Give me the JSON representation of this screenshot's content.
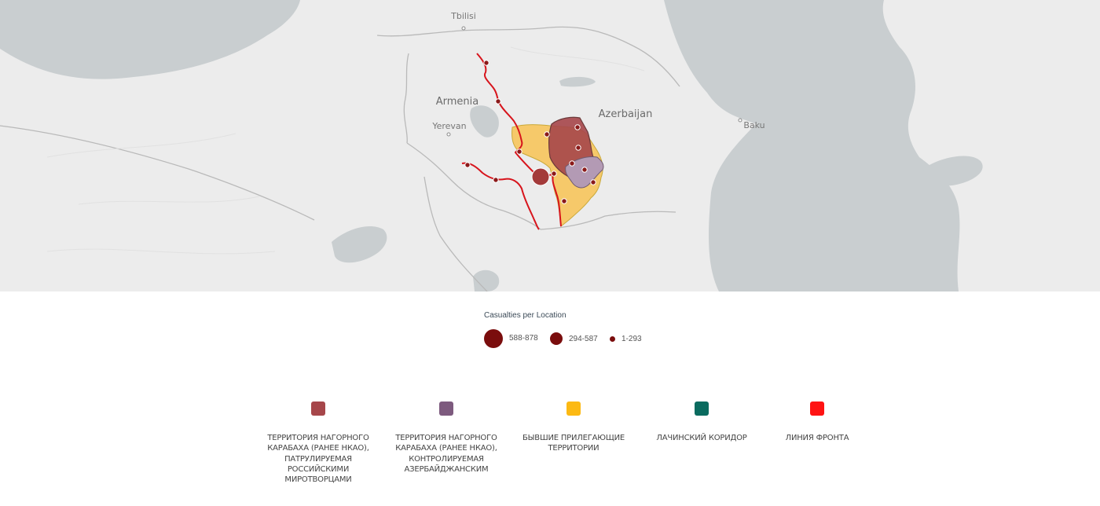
{
  "map": {
    "places": [
      {
        "name": "Tbilisi",
        "kind": "city"
      },
      {
        "name": "Armenia",
        "kind": "country"
      },
      {
        "name": "Yerevan",
        "kind": "city"
      },
      {
        "name": "Azerbaijan",
        "kind": "country"
      },
      {
        "name": "Baku",
        "kind": "city"
      }
    ],
    "colors": {
      "sea": "#c9ced0",
      "land": "#ececec",
      "border": "#b9b9b9",
      "front_line": "#d7141c",
      "casualty_marker": "#8b1a1a"
    }
  },
  "size_legend": {
    "title": "Casualties per Location",
    "items": [
      {
        "label": "588-878",
        "size": "large"
      },
      {
        "label": "294-587",
        "size": "medium"
      },
      {
        "label": "1-293",
        "size": "small"
      }
    ]
  },
  "color_legend": {
    "items": [
      {
        "label": "ТЕРРИТОРИЯ НАГОРНОГО\nКАРАБАХА (РАНЕЕ НКАО),\nПАТРУЛИРУЕМАЯ\nРОССИЙСКИМИ\nМИРОТВОРЦАМИ",
        "color": "#a6464a"
      },
      {
        "label": "ТЕРРИТОРИЯ НАГОРНОГО\nКАРАБАХА (РАНЕЕ НКАО),\nКОНТРОЛИРУЕМАЯ\nАЗЕРБАЙДЖАНСКИМ",
        "color": "#7d5a7e"
      },
      {
        "label": "БЫВШИЕ ПРИЛЕГАЮЩИЕ\nТЕРРИТОРИИ",
        "color": "#fcb913"
      },
      {
        "label": "ЛАЧИНСКИЙ КОРИДОР",
        "color": "#0a6b5f"
      },
      {
        "label": "ЛИНИЯ ФРОНТА",
        "color": "#ff1313"
      }
    ]
  }
}
